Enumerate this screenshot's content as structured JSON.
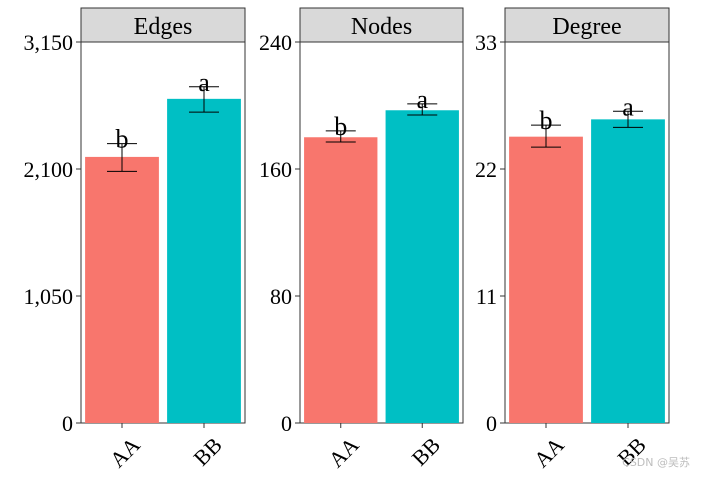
{
  "chart_data": [
    {
      "type": "bar",
      "title": "Edges",
      "categories": [
        "AA",
        "BB"
      ],
      "values": [
        2200,
        2680
      ],
      "error_low": [
        2080,
        2570
      ],
      "error_high": [
        2310,
        2780
      ],
      "letters": [
        "b",
        "a"
      ],
      "ylim": [
        0,
        3150
      ],
      "yticks": [
        0,
        1050,
        2100,
        3150
      ],
      "ytick_labels": [
        "0",
        "1,050",
        "2,100",
        "3,150"
      ]
    },
    {
      "type": "bar",
      "title": "Nodes",
      "categories": [
        "AA",
        "BB"
      ],
      "values": [
        180,
        197
      ],
      "error_low": [
        177,
        194
      ],
      "error_high": [
        184,
        201
      ],
      "letters": [
        "b",
        "a"
      ],
      "ylim": [
        0,
        240
      ],
      "yticks": [
        0,
        80,
        160,
        240
      ],
      "ytick_labels": [
        "0",
        "80",
        "160",
        "240"
      ]
    },
    {
      "type": "bar",
      "title": "Degree",
      "categories": [
        "AA",
        "BB"
      ],
      "values": [
        24.8,
        26.3
      ],
      "error_low": [
        23.9,
        25.6
      ],
      "error_high": [
        25.8,
        27.0
      ],
      "letters": [
        "b",
        "a"
      ],
      "ylim": [
        0,
        33
      ],
      "yticks": [
        0,
        11,
        22,
        33
      ],
      "ytick_labels": [
        "0",
        "11",
        "22",
        "33"
      ]
    }
  ],
  "colors": {
    "AA": "#F8766D",
    "BB": "#00BFC4",
    "strip": "#d9d9d9",
    "axis": "#333333"
  },
  "watermark": "CSDN @吴苏"
}
